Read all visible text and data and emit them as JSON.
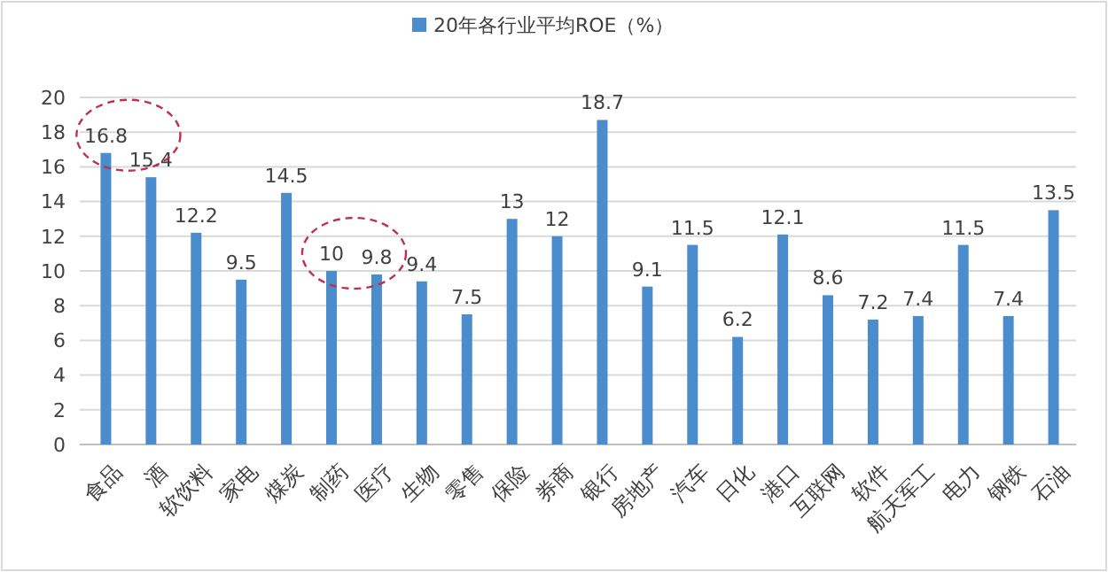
{
  "chart_data": {
    "type": "bar",
    "categories": [
      "食品",
      "酒",
      "软饮料",
      "家电",
      "煤炭",
      "制药",
      "医疗",
      "生物",
      "零售",
      "保险",
      "券商",
      "银行",
      "房地产",
      "汽车",
      "日化",
      "港口",
      "互联网",
      "软件",
      "航天军工",
      "电力",
      "钢铁",
      "石油"
    ],
    "series": [
      {
        "name": "20年各行业平均ROE（%）",
        "color": "#4a8ccc",
        "values": [
          16.8,
          15.4,
          12.2,
          9.5,
          14.5,
          10,
          9.8,
          9.4,
          7.5,
          13,
          12,
          18.7,
          9.1,
          11.5,
          6.2,
          12.1,
          8.6,
          7.2,
          7.4,
          11.5,
          7.4,
          13.5
        ]
      }
    ],
    "ylim": [
      0,
      20
    ],
    "yticks": [
      0,
      2,
      4,
      6,
      8,
      10,
      12,
      14,
      16,
      18,
      20
    ],
    "grid": "y",
    "legend": "top",
    "data_labels": true
  }
}
